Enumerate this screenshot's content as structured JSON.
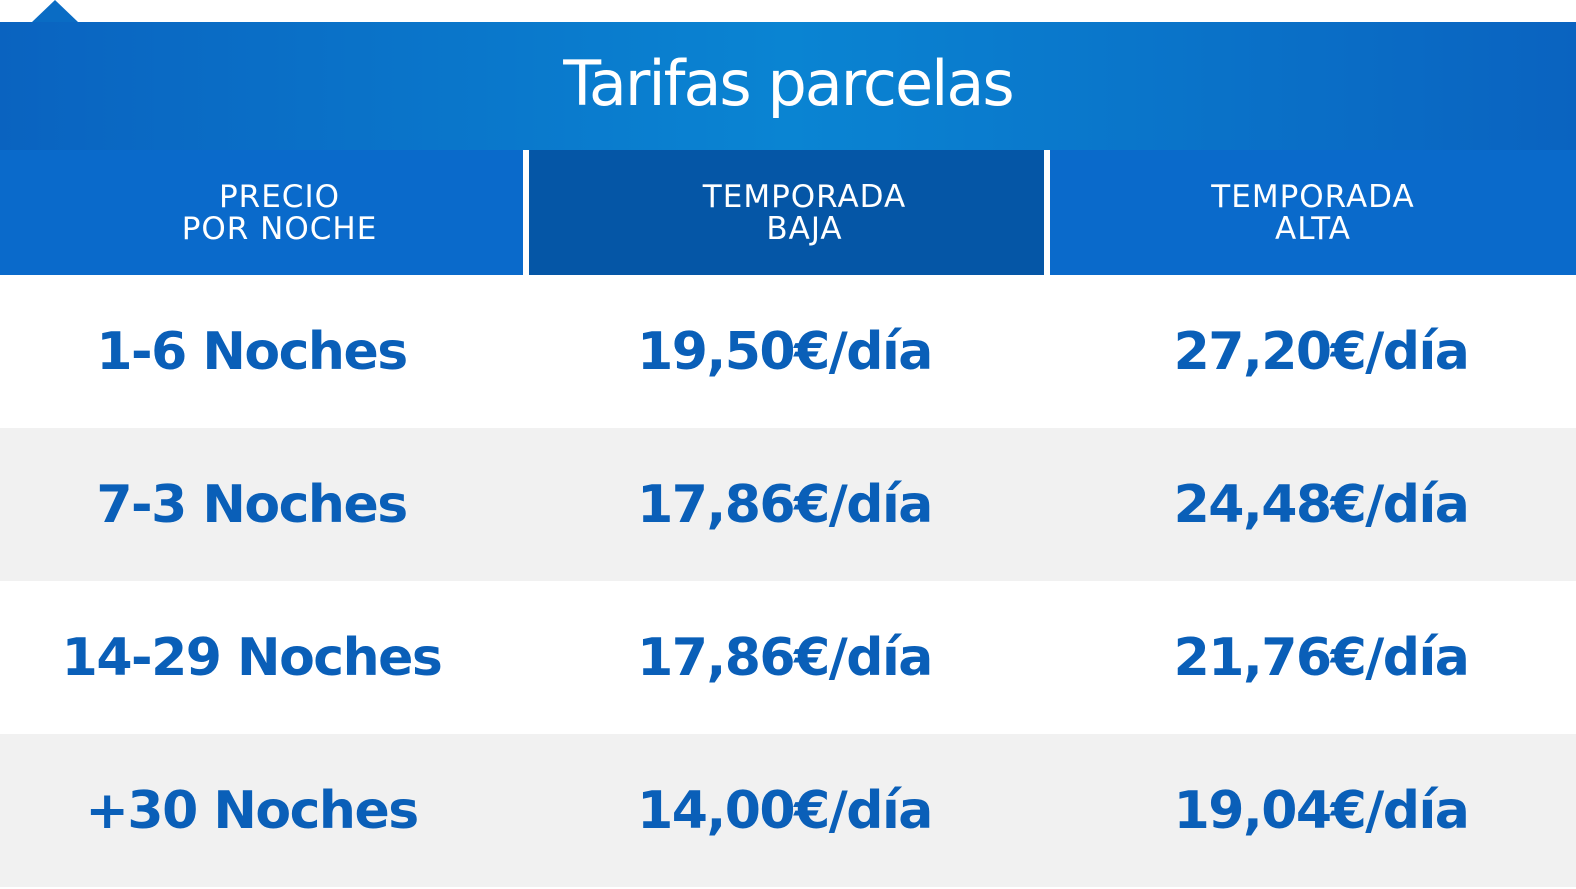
{
  "title": "Tarifas parcelas",
  "headers": [
    {
      "line1": "PRECIO",
      "line2": "POR NOCHE"
    },
    {
      "line1": "TEMPORADA",
      "line2": "BAJA"
    },
    {
      "line1": "TEMPORADA",
      "line2": "ALTA"
    }
  ],
  "rows": [
    {
      "nights": "1-6 Noches",
      "low": "19,50€/día",
      "high": "27,20€/día"
    },
    {
      "nights": "7-3 Noches",
      "low": "17,86€/día",
      "high": "24,48€/día"
    },
    {
      "nights": "14-29 Noches",
      "low": "17,86€/día",
      "high": "21,76€/día"
    },
    {
      "nights": "+30 Noches",
      "low": "14,00€/día",
      "high": "19,04€/día"
    }
  ],
  "colors": {
    "header_blue": "#0a6acb",
    "header_dark_blue": "#0556a6",
    "text_blue": "#0a5fb8",
    "alt_row": "#f1f1f1"
  }
}
